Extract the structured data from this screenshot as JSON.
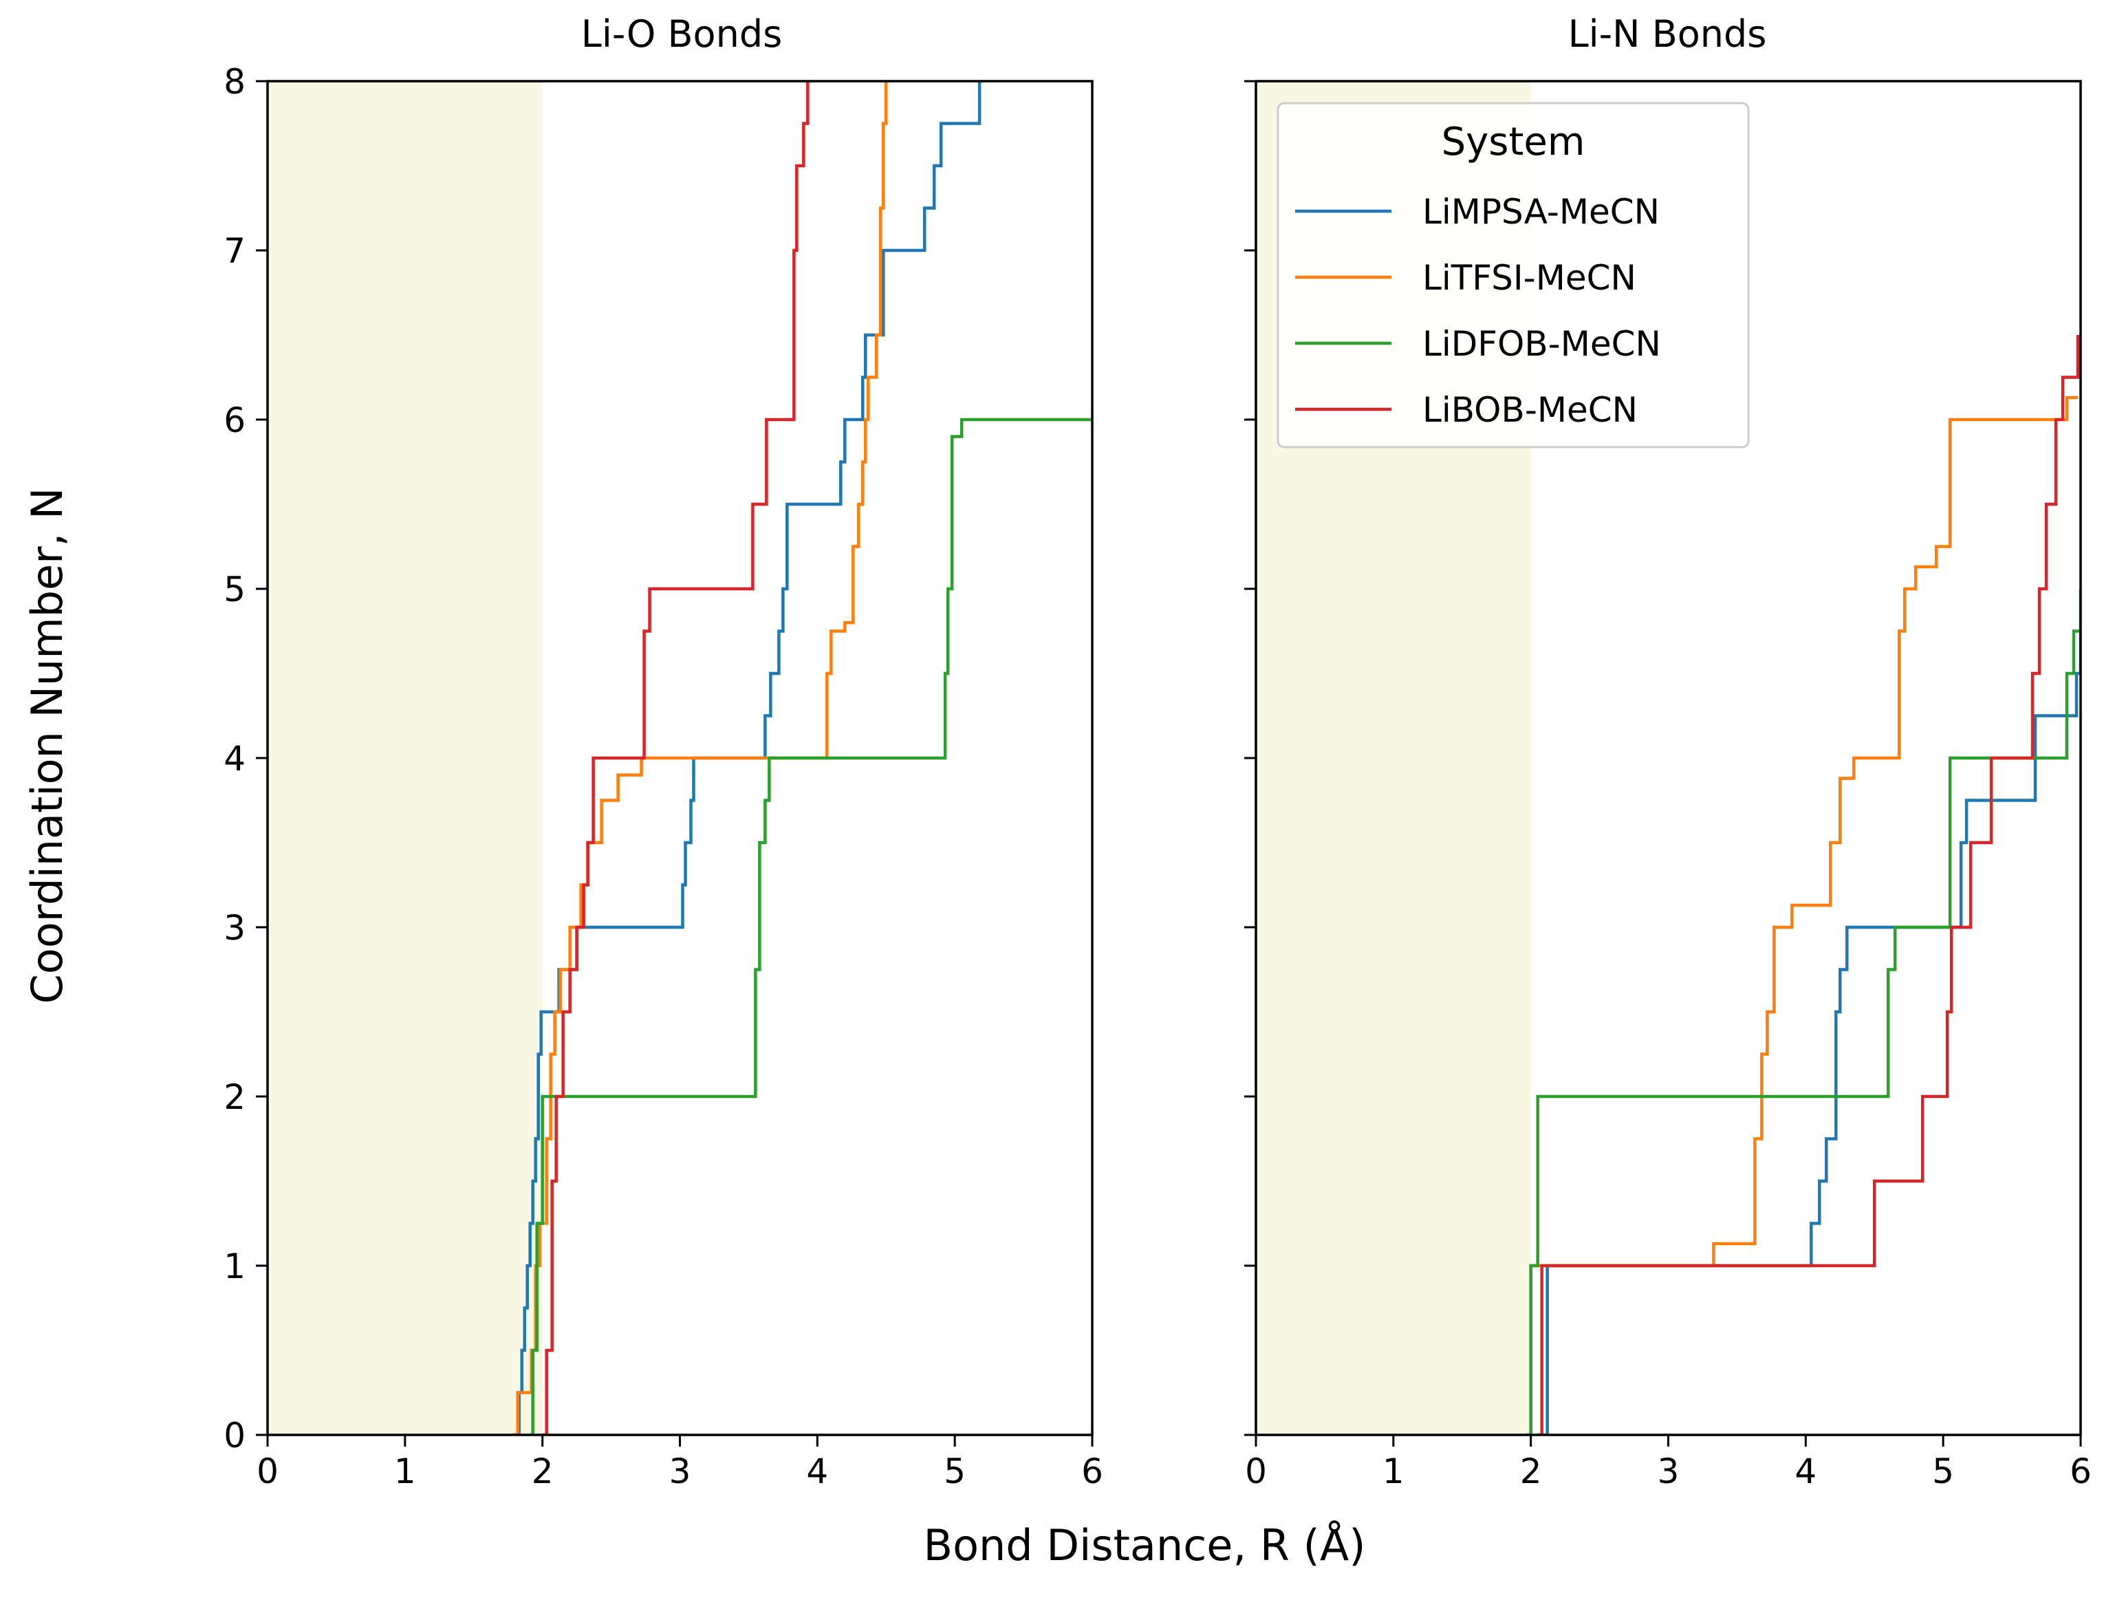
{
  "chart_data": [
    {
      "type": "line",
      "step": true,
      "title": "Li-O Bonds",
      "xlabel": "Bond Distance, R (Å)",
      "ylabel": "Coordination Number, N",
      "xlim": [
        0,
        6
      ],
      "ylim": [
        0,
        8
      ],
      "xticks": [
        0,
        1,
        2,
        3,
        4,
        5,
        6
      ],
      "yticks": [
        0,
        1,
        2,
        3,
        4,
        5,
        6,
        7,
        8
      ],
      "shaded_region": {
        "x": [
          0,
          2
        ],
        "color": "#f8f7e4"
      },
      "series": [
        {
          "name": "LiMPSA-MeCN",
          "color": "#1f77b4",
          "points": [
            [
              1.82,
              0
            ],
            [
              1.83,
              0.25
            ],
            [
              1.85,
              0.5
            ],
            [
              1.87,
              0.75
            ],
            [
              1.89,
              1.0
            ],
            [
              1.91,
              1.25
            ],
            [
              1.93,
              1.5
            ],
            [
              1.95,
              1.75
            ],
            [
              1.97,
              2.25
            ],
            [
              1.99,
              2.5
            ],
            [
              2.12,
              2.75
            ],
            [
              2.25,
              3.0
            ],
            [
              3.0,
              3.0
            ],
            [
              3.02,
              3.25
            ],
            [
              3.04,
              3.5
            ],
            [
              3.08,
              3.75
            ],
            [
              3.1,
              4.0
            ],
            [
              3.6,
              4.0
            ],
            [
              3.62,
              4.25
            ],
            [
              3.66,
              4.5
            ],
            [
              3.72,
              4.75
            ],
            [
              3.75,
              5.0
            ],
            [
              3.78,
              5.5
            ],
            [
              4.14,
              5.5
            ],
            [
              4.17,
              5.75
            ],
            [
              4.2,
              6.0
            ],
            [
              4.3,
              6.0
            ],
            [
              4.33,
              6.25
            ],
            [
              4.35,
              6.5
            ],
            [
              4.47,
              6.5
            ],
            [
              4.48,
              7.0
            ],
            [
              4.75,
              7.0
            ],
            [
              4.78,
              7.25
            ],
            [
              4.85,
              7.5
            ],
            [
              4.9,
              7.75
            ],
            [
              5.15,
              7.75
            ],
            [
              5.18,
              8.0
            ]
          ]
        },
        {
          "name": "LiTFSI-MeCN",
          "color": "#ff7f0e",
          "points": [
            [
              1.78,
              0
            ],
            [
              1.82,
              0.25
            ],
            [
              1.92,
              0.5
            ],
            [
              1.95,
              1.0
            ],
            [
              1.98,
              1.25
            ],
            [
              2.03,
              1.75
            ],
            [
              2.06,
              2.25
            ],
            [
              2.09,
              2.5
            ],
            [
              2.13,
              2.75
            ],
            [
              2.2,
              3.0
            ],
            [
              2.28,
              3.25
            ],
            [
              2.33,
              3.5
            ],
            [
              2.43,
              3.75
            ],
            [
              2.55,
              3.9
            ],
            [
              2.72,
              4.0
            ],
            [
              4.05,
              4.0
            ],
            [
              4.07,
              4.5
            ],
            [
              4.1,
              4.75
            ],
            [
              4.2,
              4.8
            ],
            [
              4.26,
              5.25
            ],
            [
              4.3,
              5.5
            ],
            [
              4.33,
              5.75
            ],
            [
              4.35,
              6.0
            ],
            [
              4.37,
              6.25
            ],
            [
              4.43,
              6.5
            ],
            [
              4.46,
              7.25
            ],
            [
              4.48,
              7.75
            ],
            [
              4.5,
              8.0
            ]
          ]
        },
        {
          "name": "LiDFOB-MeCN",
          "color": "#2ca02c",
          "points": [
            [
              1.9,
              0
            ],
            [
              1.93,
              0.5
            ],
            [
              1.96,
              1.25
            ],
            [
              2.0,
              2.0
            ],
            [
              3.52,
              2.0
            ],
            [
              3.55,
              2.75
            ],
            [
              3.58,
              3.5
            ],
            [
              3.62,
              3.75
            ],
            [
              3.65,
              4.0
            ],
            [
              4.92,
              4.0
            ],
            [
              4.93,
              4.5
            ],
            [
              4.95,
              5.0
            ],
            [
              4.98,
              5.9
            ],
            [
              5.05,
              6.0
            ],
            [
              6.0,
              6.0
            ]
          ]
        },
        {
          "name": "LiBOB-MeCN",
          "color": "#d62728",
          "points": [
            [
              2.0,
              0
            ],
            [
              2.03,
              0.5
            ],
            [
              2.07,
              1.5
            ],
            [
              2.1,
              2.0
            ],
            [
              2.15,
              2.5
            ],
            [
              2.2,
              2.75
            ],
            [
              2.25,
              3.0
            ],
            [
              2.3,
              3.25
            ],
            [
              2.33,
              3.5
            ],
            [
              2.37,
              4.0
            ],
            [
              2.7,
              4.0
            ],
            [
              2.74,
              4.75
            ],
            [
              2.78,
              5.0
            ],
            [
              3.5,
              5.0
            ],
            [
              3.53,
              5.5
            ],
            [
              3.6,
              5.5
            ],
            [
              3.63,
              6.0
            ],
            [
              3.8,
              6.0
            ],
            [
              3.83,
              7.0
            ],
            [
              3.85,
              7.5
            ],
            [
              3.9,
              7.75
            ],
            [
              3.93,
              8.0
            ]
          ]
        }
      ]
    },
    {
      "type": "line",
      "step": true,
      "title": "Li-N Bonds",
      "xlim": [
        0,
        6
      ],
      "ylim": [
        0,
        8
      ],
      "xticks": [
        0,
        1,
        2,
        3,
        4,
        5,
        6
      ],
      "yticks": [
        0,
        1,
        2,
        3,
        4,
        5,
        6,
        7,
        8
      ],
      "shaded_region": {
        "x": [
          0,
          2
        ],
        "color": "#f8f7e4"
      },
      "legend": {
        "title": "System",
        "location": "upper-left"
      },
      "series": [
        {
          "name": "LiMPSA-MeCN",
          "color": "#1f77b4",
          "points": [
            [
              2.1,
              0
            ],
            [
              2.12,
              1.0
            ],
            [
              4.02,
              1.0
            ],
            [
              4.04,
              1.25
            ],
            [
              4.1,
              1.5
            ],
            [
              4.15,
              1.75
            ],
            [
              4.22,
              2.5
            ],
            [
              4.25,
              2.75
            ],
            [
              4.3,
              3.0
            ],
            [
              5.1,
              3.0
            ],
            [
              5.13,
              3.5
            ],
            [
              5.17,
              3.75
            ],
            [
              5.62,
              3.75
            ],
            [
              5.67,
              4.25
            ],
            [
              5.95,
              4.25
            ],
            [
              5.97,
              4.5
            ],
            [
              6.0,
              4.75
            ]
          ]
        },
        {
          "name": "LiTFSI-MeCN",
          "color": "#ff7f0e",
          "points": [
            [
              1.98,
              0
            ],
            [
              2.0,
              1.0
            ],
            [
              3.28,
              1.0
            ],
            [
              3.33,
              1.13
            ],
            [
              3.6,
              1.13
            ],
            [
              3.63,
              1.75
            ],
            [
              3.68,
              2.25
            ],
            [
              3.72,
              2.5
            ],
            [
              3.77,
              3.0
            ],
            [
              3.9,
              3.13
            ],
            [
              4.15,
              3.13
            ],
            [
              4.18,
              3.5
            ],
            [
              4.25,
              3.88
            ],
            [
              4.35,
              4.0
            ],
            [
              4.65,
              4.0
            ],
            [
              4.68,
              4.75
            ],
            [
              4.72,
              5.0
            ],
            [
              4.8,
              5.13
            ],
            [
              4.95,
              5.25
            ],
            [
              5.05,
              6.0
            ],
            [
              5.85,
              6.0
            ],
            [
              5.9,
              6.13
            ],
            [
              5.98,
              6.13
            ]
          ]
        },
        {
          "name": "LiDFOB-MeCN",
          "color": "#2ca02c",
          "points": [
            [
              1.97,
              0
            ],
            [
              2.0,
              1.0
            ],
            [
              2.05,
              2.0
            ],
            [
              4.58,
              2.0
            ],
            [
              4.6,
              2.75
            ],
            [
              4.65,
              3.0
            ],
            [
              5.02,
              3.0
            ],
            [
              5.05,
              4.0
            ],
            [
              5.85,
              4.0
            ],
            [
              5.9,
              4.5
            ],
            [
              5.95,
              4.75
            ],
            [
              6.0,
              5.0
            ]
          ]
        },
        {
          "name": "LiBOB-MeCN",
          "color": "#d62728",
          "points": [
            [
              2.05,
              0
            ],
            [
              2.08,
              1.0
            ],
            [
              4.47,
              1.0
            ],
            [
              4.5,
              1.5
            ],
            [
              4.8,
              1.5
            ],
            [
              4.85,
              2.0
            ],
            [
              5.0,
              2.0
            ],
            [
              5.03,
              2.5
            ],
            [
              5.06,
              3.0
            ],
            [
              5.15,
              3.0
            ],
            [
              5.2,
              3.5
            ],
            [
              5.35,
              4.0
            ],
            [
              5.6,
              4.0
            ],
            [
              5.65,
              4.5
            ],
            [
              5.7,
              5.0
            ],
            [
              5.75,
              5.5
            ],
            [
              5.82,
              6.0
            ],
            [
              5.87,
              6.25
            ],
            [
              5.95,
              6.25
            ],
            [
              5.98,
              6.5
            ]
          ]
        }
      ]
    }
  ]
}
